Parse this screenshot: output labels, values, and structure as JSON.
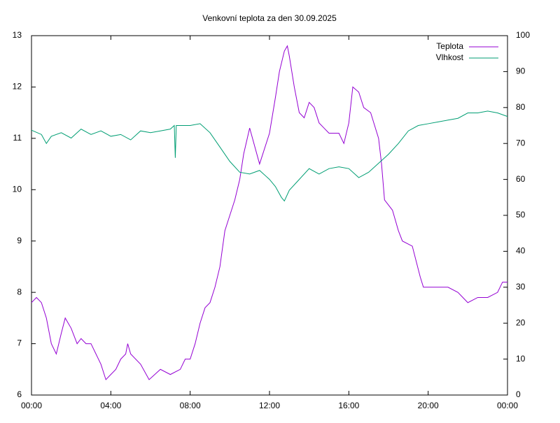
{
  "chart_data": {
    "type": "line",
    "title": "Venkovní teplota za den 30.09.2025",
    "xlim": [
      0,
      24
    ],
    "xticks": [
      {
        "value": 0,
        "label": "00:00"
      },
      {
        "value": 4,
        "label": "04:00"
      },
      {
        "value": 8,
        "label": "08:00"
      },
      {
        "value": 12,
        "label": "12:00"
      },
      {
        "value": 16,
        "label": "16:00"
      },
      {
        "value": 20,
        "label": "20:00"
      },
      {
        "value": 24,
        "label": "00:00"
      }
    ],
    "ylim": [
      6,
      13
    ],
    "yticks": [
      6,
      7,
      8,
      9,
      10,
      11,
      12,
      13
    ],
    "y2lim": [
      0,
      100
    ],
    "y2ticks": [
      0,
      10,
      20,
      30,
      40,
      50,
      60,
      70,
      80,
      90,
      100
    ],
    "legend": "top-right",
    "series": [
      {
        "name": "Teplota",
        "color": "#9400d3",
        "x": [
          0,
          0.25,
          0.5,
          0.75,
          1.0,
          1.25,
          1.5,
          1.7,
          2.0,
          2.3,
          2.5,
          2.75,
          3.0,
          3.25,
          3.5,
          3.75,
          4.0,
          4.25,
          4.5,
          4.75,
          4.85,
          5.0,
          5.5,
          5.93,
          6.5,
          7.0,
          7.5,
          7.75,
          8.0,
          8.25,
          8.5,
          8.75,
          9.0,
          9.25,
          9.5,
          9.75,
          10.0,
          10.25,
          10.5,
          10.7,
          11.0,
          11.5,
          12.0,
          12.3,
          12.5,
          12.75,
          12.9,
          13.0,
          13.25,
          13.5,
          13.75,
          14.0,
          14.25,
          14.5,
          14.75,
          15.0,
          15.5,
          15.75,
          16.0,
          16.2,
          16.5,
          16.75,
          17.1,
          17.5,
          17.65,
          17.8,
          18.2,
          18.5,
          18.7,
          19.2,
          19.6,
          19.76,
          20.0,
          21.0,
          21.5,
          21.75,
          22.0,
          22.5,
          23.0,
          23.5,
          23.75,
          24.0
        ],
        "values": [
          7.8,
          7.9,
          7.8,
          7.5,
          7.0,
          6.8,
          7.2,
          7.5,
          7.3,
          7.0,
          7.1,
          7.0,
          7.0,
          6.8,
          6.6,
          6.3,
          6.4,
          6.5,
          6.7,
          6.8,
          7.0,
          6.8,
          6.6,
          6.3,
          6.5,
          6.4,
          6.5,
          6.7,
          6.7,
          7.0,
          7.4,
          7.7,
          7.8,
          8.1,
          8.5,
          9.2,
          9.5,
          9.8,
          10.2,
          10.7,
          11.2,
          10.5,
          11.1,
          11.8,
          12.3,
          12.7,
          12.8,
          12.6,
          12.0,
          11.5,
          11.4,
          11.7,
          11.6,
          11.3,
          11.2,
          11.1,
          11.1,
          10.9,
          11.3,
          12.0,
          11.9,
          11.6,
          11.5,
          11.0,
          10.5,
          9.8,
          9.6,
          9.2,
          9.0,
          8.9,
          8.3,
          8.1,
          8.1,
          8.1,
          8.0,
          7.9,
          7.8,
          7.9,
          7.9,
          8.0,
          8.2,
          8.2
        ]
      },
      {
        "name": "Vlhkost",
        "color": "#009e73",
        "axis": "y2",
        "x": [
          0,
          0.5,
          0.75,
          1.0,
          1.5,
          2.0,
          2.5,
          3.0,
          3.5,
          4.0,
          4.5,
          5.0,
          5.5,
          6.0,
          6.5,
          7.0,
          7.2,
          7.25,
          7.3,
          7.5,
          8.0,
          8.5,
          9.0,
          9.5,
          10.0,
          10.5,
          11.0,
          11.5,
          12.0,
          12.3,
          12.6,
          12.75,
          13.0,
          13.5,
          14.0,
          14.5,
          15.0,
          15.5,
          16.0,
          16.5,
          17.0,
          17.5,
          18.0,
          18.5,
          19.0,
          19.5,
          20.0,
          20.5,
          21.0,
          21.5,
          22.0,
          22.5,
          23.0,
          23.5,
          24.0
        ],
        "values": [
          73.7,
          72.5,
          70,
          72,
          73,
          71.5,
          74,
          72.5,
          73.5,
          72,
          72.5,
          71,
          73.5,
          73,
          73.5,
          74,
          75,
          66,
          75,
          75,
          75,
          75.5,
          73,
          69,
          65,
          62,
          61.5,
          62.5,
          60,
          58,
          55,
          54,
          57,
          60,
          63,
          61.5,
          63,
          63.5,
          63,
          60.5,
          62,
          64.5,
          67,
          70,
          73.5,
          75,
          75.5,
          76,
          76.5,
          77,
          78.5,
          78.5,
          79,
          78.5,
          77.5
        ]
      }
    ]
  }
}
